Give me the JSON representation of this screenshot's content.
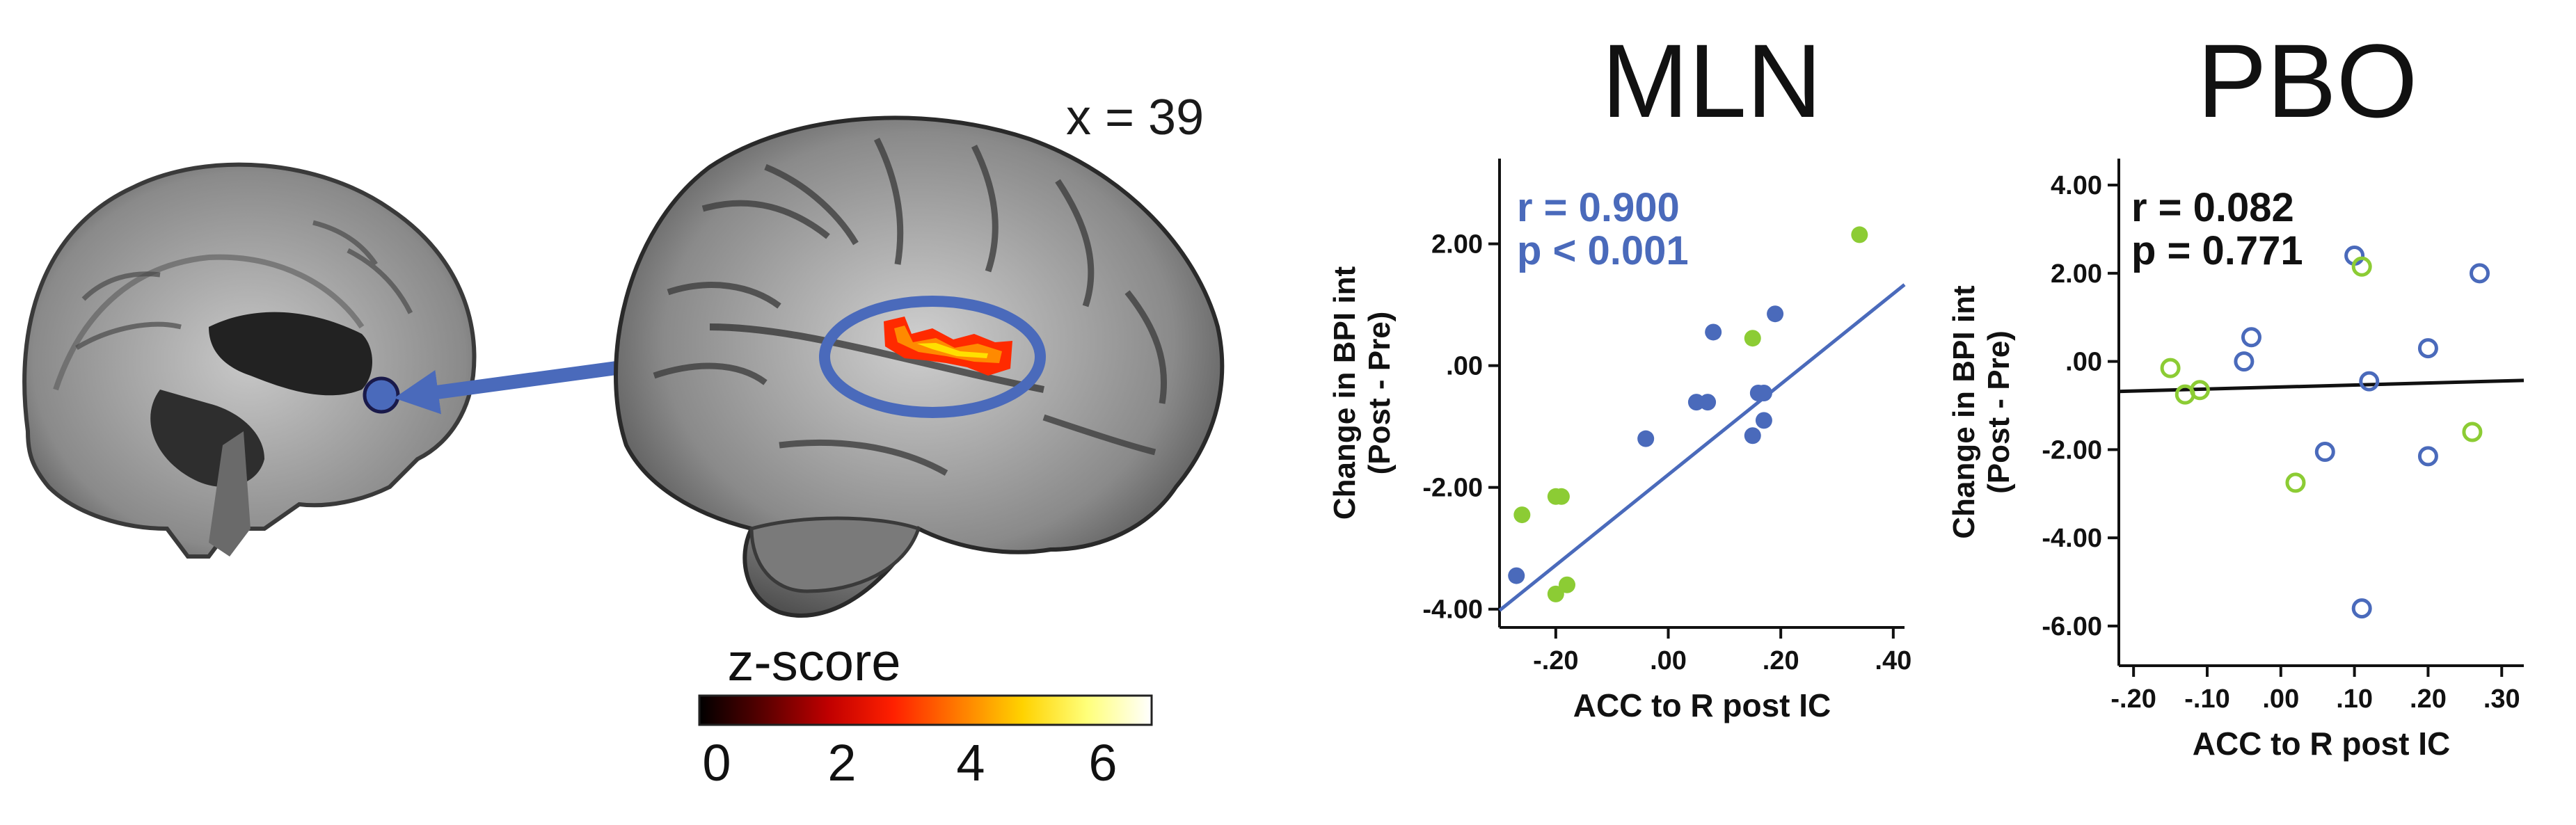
{
  "brain": {
    "slice_label": "x = 39",
    "colorbar": {
      "title": "z-score",
      "ticks": [
        "0",
        "2",
        "4",
        "6"
      ],
      "colors": [
        "#000000",
        "#5a0000",
        "#c00000",
        "#ff2000",
        "#ff7a00",
        "#ffd200",
        "#ffff7a",
        "#ffffff"
      ]
    },
    "marker_color": "#4a6abb",
    "cluster_colors": [
      "#ff2a00",
      "#ff8a00",
      "#ffe000"
    ]
  },
  "chart_data": [
    {
      "type": "scatter",
      "title": "MLN",
      "xlabel": "ACC to R post IC",
      "ylabel_lines": [
        "Change in BPI int",
        "(Post - Pre)"
      ],
      "xlim": [
        -0.3,
        0.42
      ],
      "ylim": [
        -4.3,
        3.4
      ],
      "xticks": [
        -0.2,
        0.0,
        0.2,
        0.4
      ],
      "xtick_labels": [
        "-.20",
        ".00",
        ".20",
        ".40"
      ],
      "yticks": [
        -4,
        -2,
        0,
        2
      ],
      "ytick_labels": [
        "-4.00",
        "-2.00",
        ".00",
        "2.00"
      ],
      "annotation": [
        "r = 0.900",
        "p < 0.001"
      ],
      "annotation_color": "#4a6abb",
      "marker_style": "filled",
      "fit_line": {
        "color": "#4a6abb",
        "x": [
          -0.3,
          0.42
        ],
        "y": [
          -4.02,
          1.33
        ]
      },
      "series": [
        {
          "color": "#4a6abb",
          "x": [
            -0.27,
            -0.04,
            0.05,
            0.07,
            0.08,
            0.15,
            0.17,
            0.17,
            0.19,
            0.16
          ],
          "y": [
            -3.45,
            -1.2,
            -0.6,
            -0.6,
            0.55,
            -1.15,
            -0.45,
            -0.9,
            0.85,
            -0.45
          ]
        },
        {
          "color": "#8ccc34",
          "x": [
            -0.26,
            -0.2,
            -0.19,
            -0.2,
            -0.18,
            0.15,
            0.34
          ],
          "y": [
            -2.45,
            -2.15,
            -2.15,
            -3.75,
            -3.6,
            0.45,
            2.15
          ]
        }
      ]
    },
    {
      "type": "scatter",
      "title": "PBO",
      "xlabel": "ACC to R post IC",
      "ylabel_lines": [
        "Change in BPI int",
        "(Post - Pre)"
      ],
      "xlim": [
        -0.22,
        0.33
      ],
      "ylim": [
        -6.9,
        4.6
      ],
      "xticks": [
        -0.2,
        -0.1,
        0.0,
        0.1,
        0.2,
        0.3
      ],
      "xtick_labels": [
        "-.20",
        "-.10",
        ".00",
        ".10",
        ".20",
        ".30"
      ],
      "yticks": [
        -6,
        -4,
        -2,
        0,
        2,
        4
      ],
      "ytick_labels": [
        "-6.00",
        "-4.00",
        "-2.00",
        ".00",
        "2.00",
        "4.00"
      ],
      "annotation": [
        "r = 0.082",
        "p = 0.771"
      ],
      "annotation_color": "#111111",
      "marker_style": "open",
      "fit_line": {
        "color": "#111111",
        "x": [
          -0.22,
          0.33
        ],
        "y": [
          -0.68,
          -0.43
        ]
      },
      "series": [
        {
          "color": "#4a6abb",
          "x": [
            -0.05,
            -0.04,
            0.06,
            0.1,
            0.12,
            0.11,
            0.2,
            0.2,
            0.27
          ],
          "y": [
            0.0,
            0.55,
            -2.05,
            2.4,
            -0.45,
            -5.6,
            0.3,
            -2.15,
            2.0
          ]
        },
        {
          "color": "#8ccc34",
          "x": [
            -0.15,
            -0.13,
            -0.11,
            0.02,
            0.11,
            0.26
          ],
          "y": [
            -0.15,
            -0.75,
            -0.65,
            -2.75,
            2.15,
            -1.6
          ]
        }
      ]
    }
  ]
}
